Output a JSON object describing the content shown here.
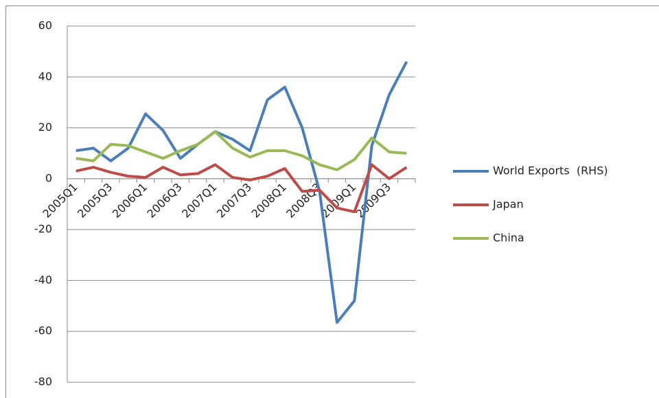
{
  "chart_data": {
    "type": "line",
    "categories": [
      "2005Q1",
      null,
      "2005Q3",
      null,
      "2006Q1",
      null,
      "2006Q3",
      null,
      "2007Q1",
      null,
      "2007Q3",
      null,
      "2008Q1",
      null,
      "2008Q3",
      null,
      "2009Q1",
      null,
      "2009Q3",
      null
    ],
    "series": [
      {
        "name": "World Exports  (RHS)",
        "color": "#4a7ebb",
        "values": [
          11,
          12,
          7,
          12,
          25.5,
          19,
          8,
          13.5,
          18.5,
          15.5,
          11,
          31,
          36,
          20,
          -5,
          -56.5,
          -48,
          13,
          33,
          46
        ]
      },
      {
        "name": "Japan",
        "color": "#be4b48",
        "values": [
          3,
          4.5,
          2.5,
          1,
          0.5,
          4.5,
          1.5,
          2,
          5.5,
          0.5,
          -0.5,
          1,
          4,
          -5,
          -4.5,
          -11.5,
          -13,
          5.5,
          0,
          4.5
        ]
      },
      {
        "name": "China",
        "color": "#98b954",
        "values": [
          8,
          7,
          13.5,
          13,
          10.5,
          8,
          11,
          13.5,
          18.5,
          12,
          8.5,
          11,
          11,
          9,
          5.5,
          3.5,
          7.5,
          16,
          10.5,
          10
        ]
      }
    ],
    "ylim": [
      -80,
      60
    ],
    "yticks": [
      -80,
      -60,
      -40,
      -20,
      0,
      20,
      40,
      60
    ],
    "grid": true,
    "legend": "right"
  }
}
